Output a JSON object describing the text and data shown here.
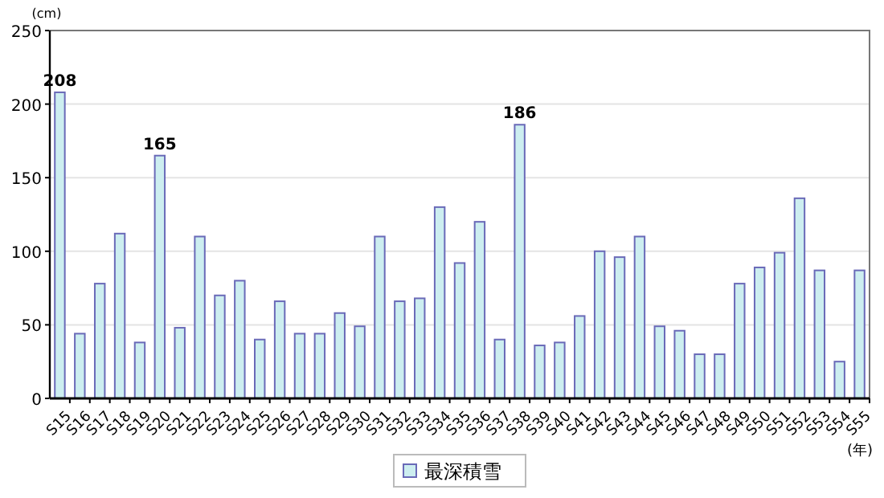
{
  "chart_data": {
    "type": "bar",
    "ylabel": "(cm)",
    "xlabel": "(年)",
    "categories": [
      "S15",
      "S16",
      "S17",
      "S18",
      "S19",
      "S20",
      "S21",
      "S22",
      "S23",
      "S24",
      "S25",
      "S26",
      "S27",
      "S28",
      "S29",
      "S30",
      "S31",
      "S32",
      "S33",
      "S34",
      "S35",
      "S36",
      "S37",
      "S38",
      "S39",
      "S40",
      "S41",
      "S42",
      "S43",
      "S44",
      "S45",
      "S46",
      "S47",
      "S48",
      "S49",
      "S50",
      "S51",
      "S52",
      "S53",
      "S54",
      "S55"
    ],
    "series": [
      {
        "name": "最深積雪",
        "color": "#cdeef0",
        "values": [
          208,
          44,
          78,
          112,
          38,
          165,
          48,
          110,
          70,
          80,
          40,
          66,
          44,
          44,
          58,
          49,
          110,
          66,
          68,
          130,
          92,
          120,
          40,
          186,
          36,
          38,
          56,
          100,
          96,
          110,
          49,
          46,
          30,
          30,
          78,
          89,
          99,
          136,
          87,
          25,
          87
        ],
        "value_labels": [
          "208",
          null,
          null,
          null,
          null,
          "165",
          null,
          null,
          null,
          null,
          null,
          null,
          null,
          null,
          null,
          null,
          null,
          null,
          null,
          null,
          null,
          null,
          null,
          "186",
          null,
          null,
          null,
          null,
          null,
          null,
          null,
          null,
          null,
          null,
          null,
          null,
          null,
          null,
          null,
          null,
          null
        ]
      }
    ],
    "ylim": [
      0,
      250
    ],
    "yticks": [
      0,
      50,
      100,
      150,
      200,
      250
    ],
    "grid": "y",
    "legend": "bottom"
  }
}
